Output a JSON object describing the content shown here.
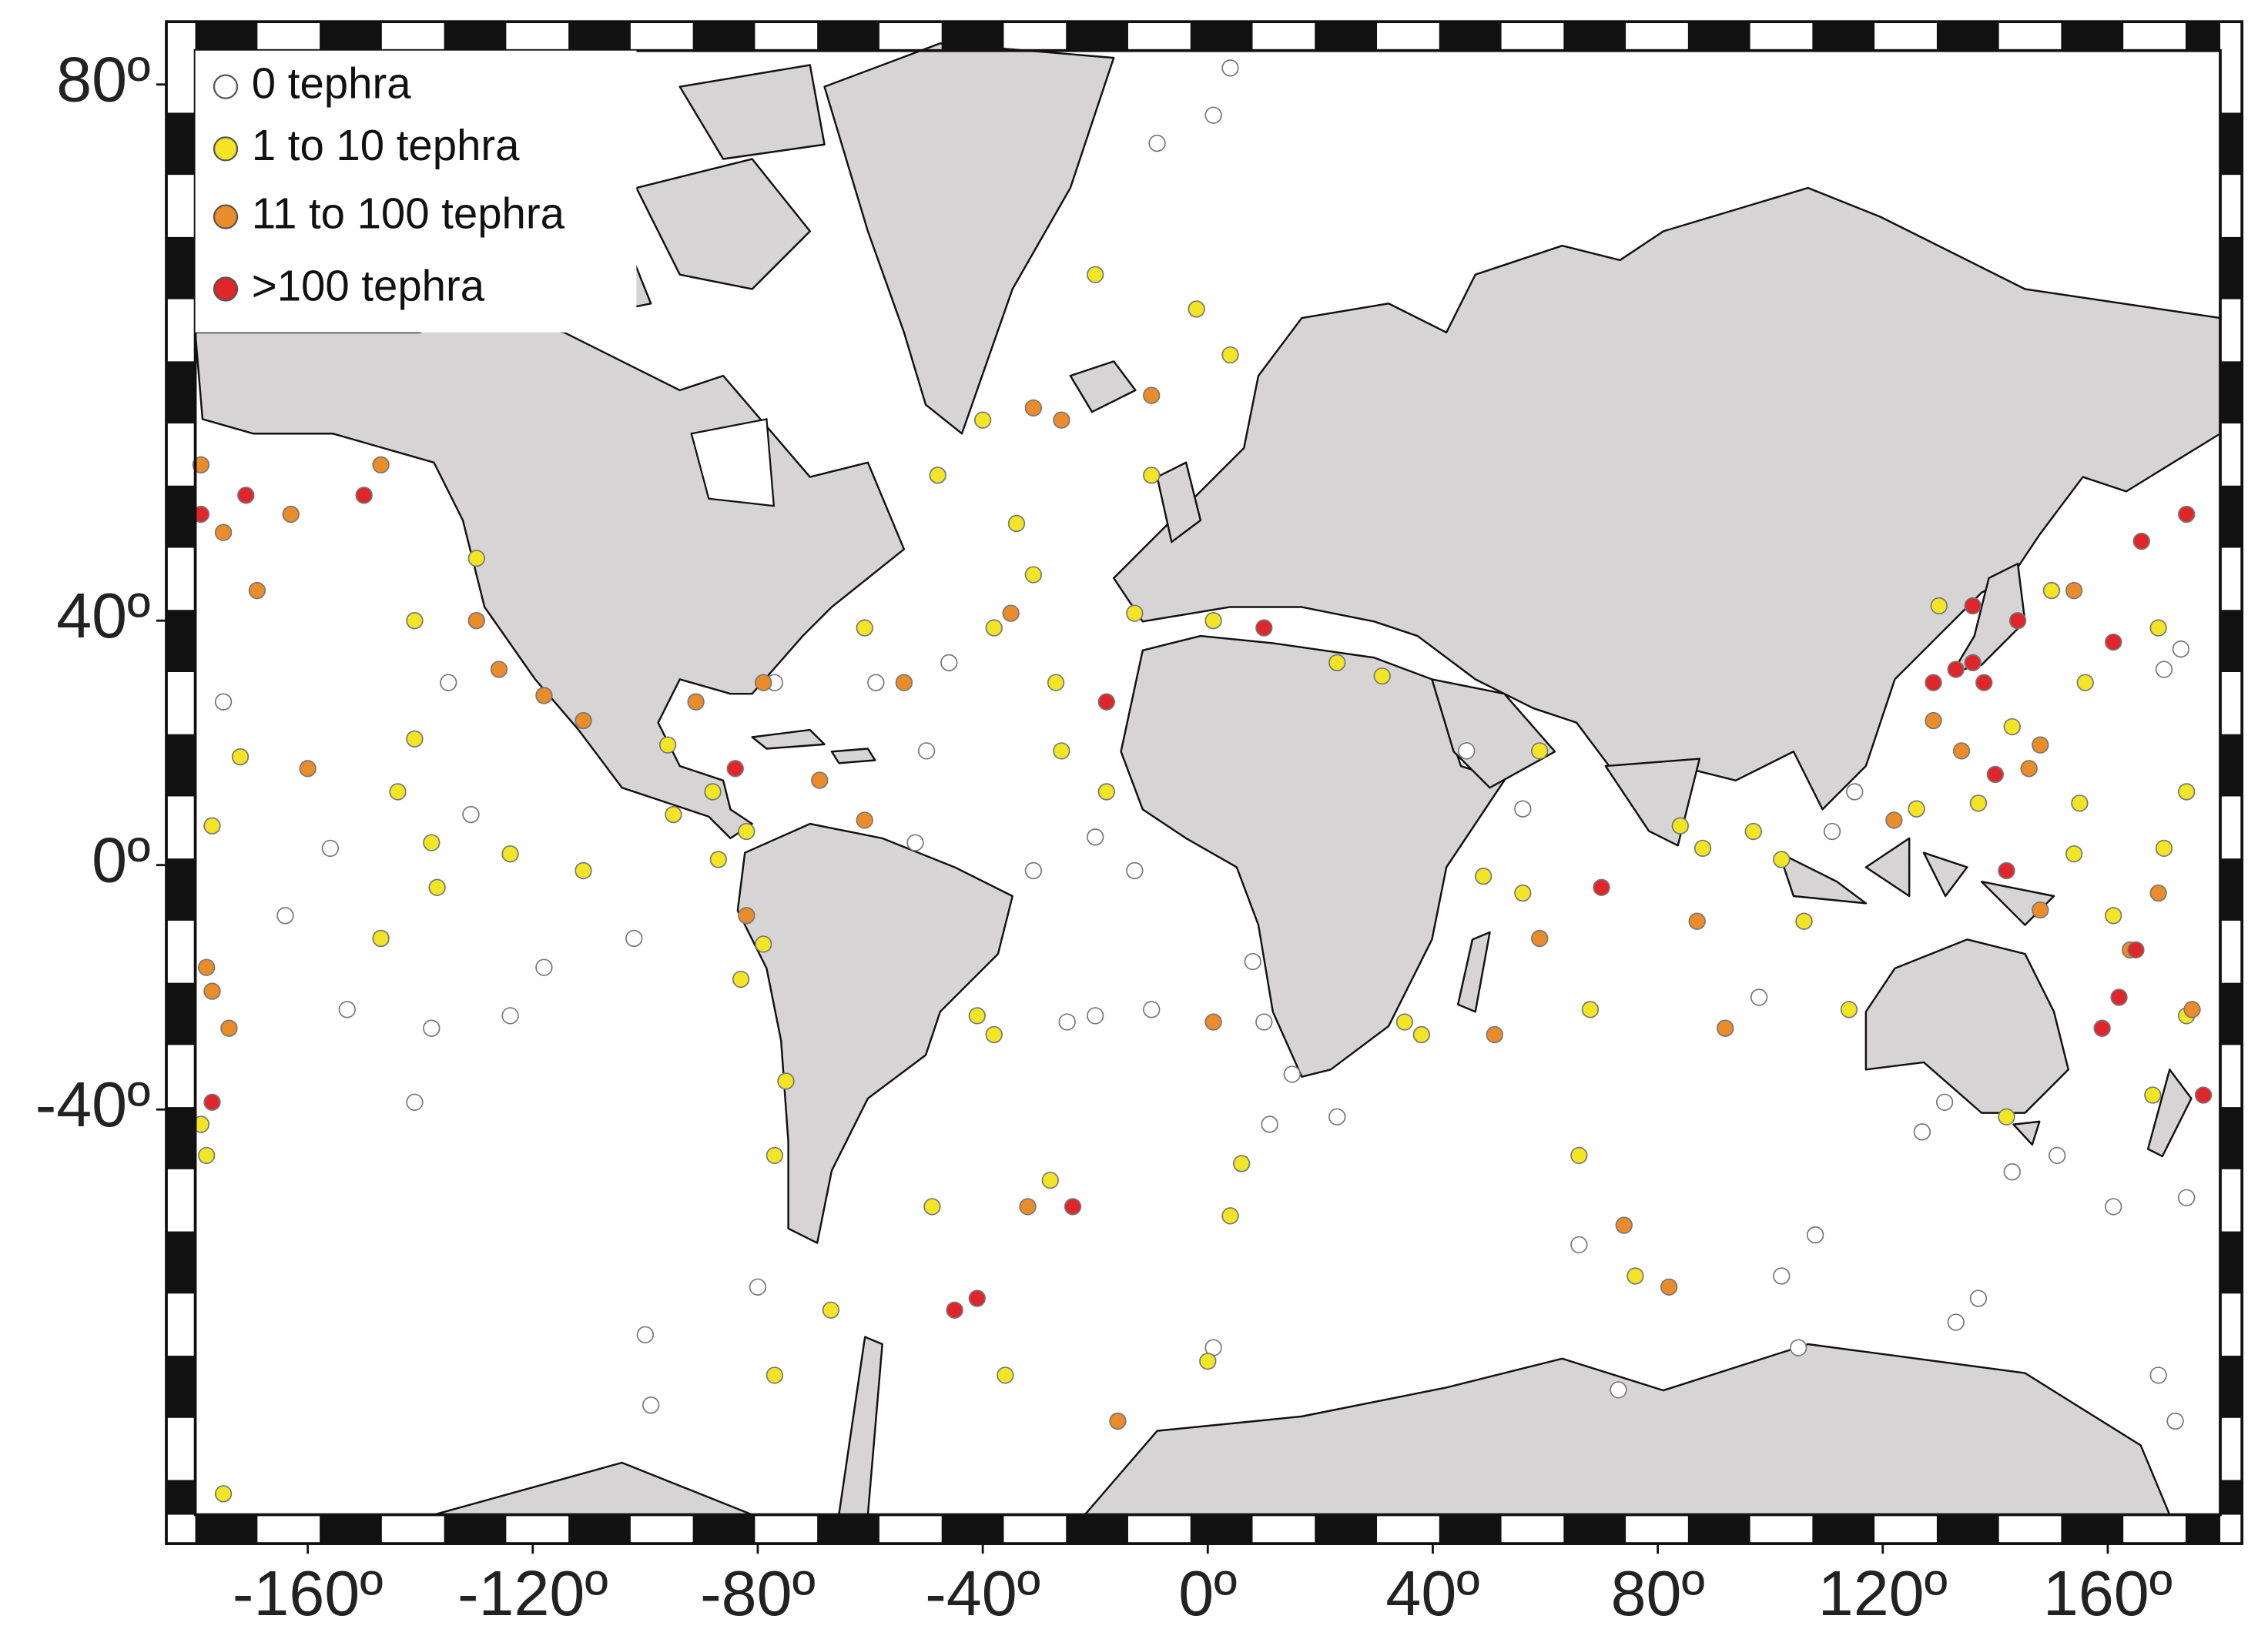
{
  "chart_data": {
    "type": "scatter",
    "y_scale": "mercator",
    "xlim": [
      -180,
      180
    ],
    "ylim": [
      -75,
      81
    ],
    "xticks": [
      {
        "value": -160,
        "label": "-160º"
      },
      {
        "value": -120,
        "label": "-120º"
      },
      {
        "value": -80,
        "label": "-80º"
      },
      {
        "value": -40,
        "label": "-40º"
      },
      {
        "value": 0,
        "label": "0º"
      },
      {
        "value": 40,
        "label": "40º"
      },
      {
        "value": 80,
        "label": "80º"
      },
      {
        "value": 120,
        "label": "120º"
      },
      {
        "value": 160,
        "label": "160º"
      }
    ],
    "yticks": [
      {
        "value": 80,
        "label": "80º"
      },
      {
        "value": 40,
        "label": "40º"
      },
      {
        "value": 0,
        "label": "0º"
      },
      {
        "value": -40,
        "label": "-40º"
      }
    ],
    "legend": "top-left",
    "series": [
      {
        "name": "0 tephra",
        "color": "#ffffff",
        "x": [
          -175,
          -164,
          -156,
          -153,
          -138,
          -141,
          -124,
          -118,
          -102,
          -100,
          -99,
          -135,
          -131,
          -52,
          -50,
          -46,
          -59,
          -77,
          -31,
          -20,
          -13,
          -10,
          -20,
          -25,
          8,
          10,
          15,
          23,
          11,
          56,
          46,
          66,
          73,
          102,
          108,
          105,
          111,
          127,
          131,
          143,
          151,
          161,
          174,
          169,
          172,
          133,
          137,
          98,
          173,
          170,
          115,
          -9,
          1,
          4,
          -80,
          1
        ],
        "values": [
          28,
          -9,
          3,
          -25,
          -28,
          -39,
          -26,
          -18,
          -13,
          -64,
          -69,
          31,
          9,
          4,
          20,
          34,
          31,
          31,
          -1,
          5,
          -1,
          -25,
          -26,
          -27,
          -17,
          -27,
          -35,
          -41,
          -42,
          10,
          20,
          -56,
          -68,
          -59,
          -55,
          -65,
          6,
          -43,
          -39,
          -48,
          -46,
          -52,
          -51,
          -67,
          -70,
          -63,
          -61,
          -23,
          36,
          33,
          13,
          78,
          79,
          80.5,
          -60,
          -65
        ]
      },
      {
        "name": "1 to 10 tephra",
        "color": "#f2e526",
        "x": [
          -179,
          -178,
          -172,
          -177,
          -141,
          -141,
          -144,
          -138,
          -137,
          -147,
          -130,
          -124,
          -111,
          -95,
          -96,
          -88,
          -82,
          -87,
          -79,
          -83,
          -75,
          -77,
          -67,
          -77,
          -175,
          -49,
          -36,
          -40,
          -48,
          -34,
          -31,
          -38,
          -61,
          -27,
          -26,
          -18,
          -20,
          -2,
          4,
          -10,
          -13,
          1,
          23,
          31,
          59,
          49,
          35,
          38,
          56,
          66,
          68,
          76,
          84,
          88,
          106,
          114,
          126,
          137,
          143,
          156,
          155,
          154,
          169,
          174,
          170,
          161,
          168,
          174,
          142,
          150,
          130,
          102,
          97,
          4,
          6,
          0,
          -28,
          -41,
          -38
        ],
        "values": [
          -42,
          -46,
          19,
          7,
          40,
          22,
          13,
          4,
          -4,
          -13,
          48,
          2,
          -1,
          9,
          21,
          13,
          6,
          1,
          -14,
          -20,
          -36,
          -46,
          -62,
          -67,
          -74,
          -52,
          -67,
          62,
          57,
          52,
          46,
          39,
          39,
          31,
          20,
          13,
          72,
          70,
          67,
          57,
          41,
          40,
          34,
          32,
          20,
          -2,
          -27,
          -29,
          -5,
          -46,
          -25,
          -59,
          7,
          3,
          -10,
          -25,
          10,
          11,
          24,
          31,
          11,
          2,
          39,
          13,
          3,
          -9,
          -38,
          -26,
          -41,
          44,
          42,
          1,
          6,
          -53,
          -47,
          -66,
          -49,
          -26,
          -29
        ]
      },
      {
        "name": "11 to 100 tephra",
        "color": "#eb8c2b",
        "x": [
          -179,
          -175,
          -163,
          -169,
          -178,
          -177,
          -174,
          -147,
          -130,
          -126,
          -118,
          -111,
          -160,
          -91,
          -79,
          -69,
          -61,
          -82,
          -35,
          -54,
          -26,
          -10,
          -31,
          -16,
          -32,
          1,
          51,
          59,
          74,
          82,
          87,
          92,
          122,
          129,
          148,
          154,
          148,
          164,
          169,
          175,
          146,
          134
        ],
        "values": [
          58,
          51,
          53,
          44,
          -18,
          -22,
          -28,
          58,
          40,
          33,
          29,
          25,
          17,
          28,
          31,
          15,
          8,
          -9,
          41,
          31,
          62,
          64,
          63,
          -70,
          -52,
          -27,
          -29,
          -13,
          -54,
          -60,
          -10,
          -28,
          8,
          25,
          21,
          44,
          -8,
          -15,
          -5,
          -25,
          17,
          20
        ]
      },
      {
        "name": ">100 tephra",
        "color": "#e0262b",
        "x": [
          -179,
          -171,
          -150,
          -177,
          -84,
          136,
          133,
          138,
          161,
          166,
          174,
          140,
          142,
          70,
          165,
          162,
          159,
          177,
          144,
          -18,
          10,
          -45,
          -41,
          -24,
          136,
          129
        ],
        "values": [
          53,
          55,
          55,
          -39,
          17,
          42,
          33,
          31,
          37,
          50,
          53,
          16,
          -1,
          -4,
          -15,
          -23,
          -28,
          -38,
          40,
          28,
          39,
          -62,
          -61,
          -52,
          34,
          31
        ]
      }
    ]
  }
}
